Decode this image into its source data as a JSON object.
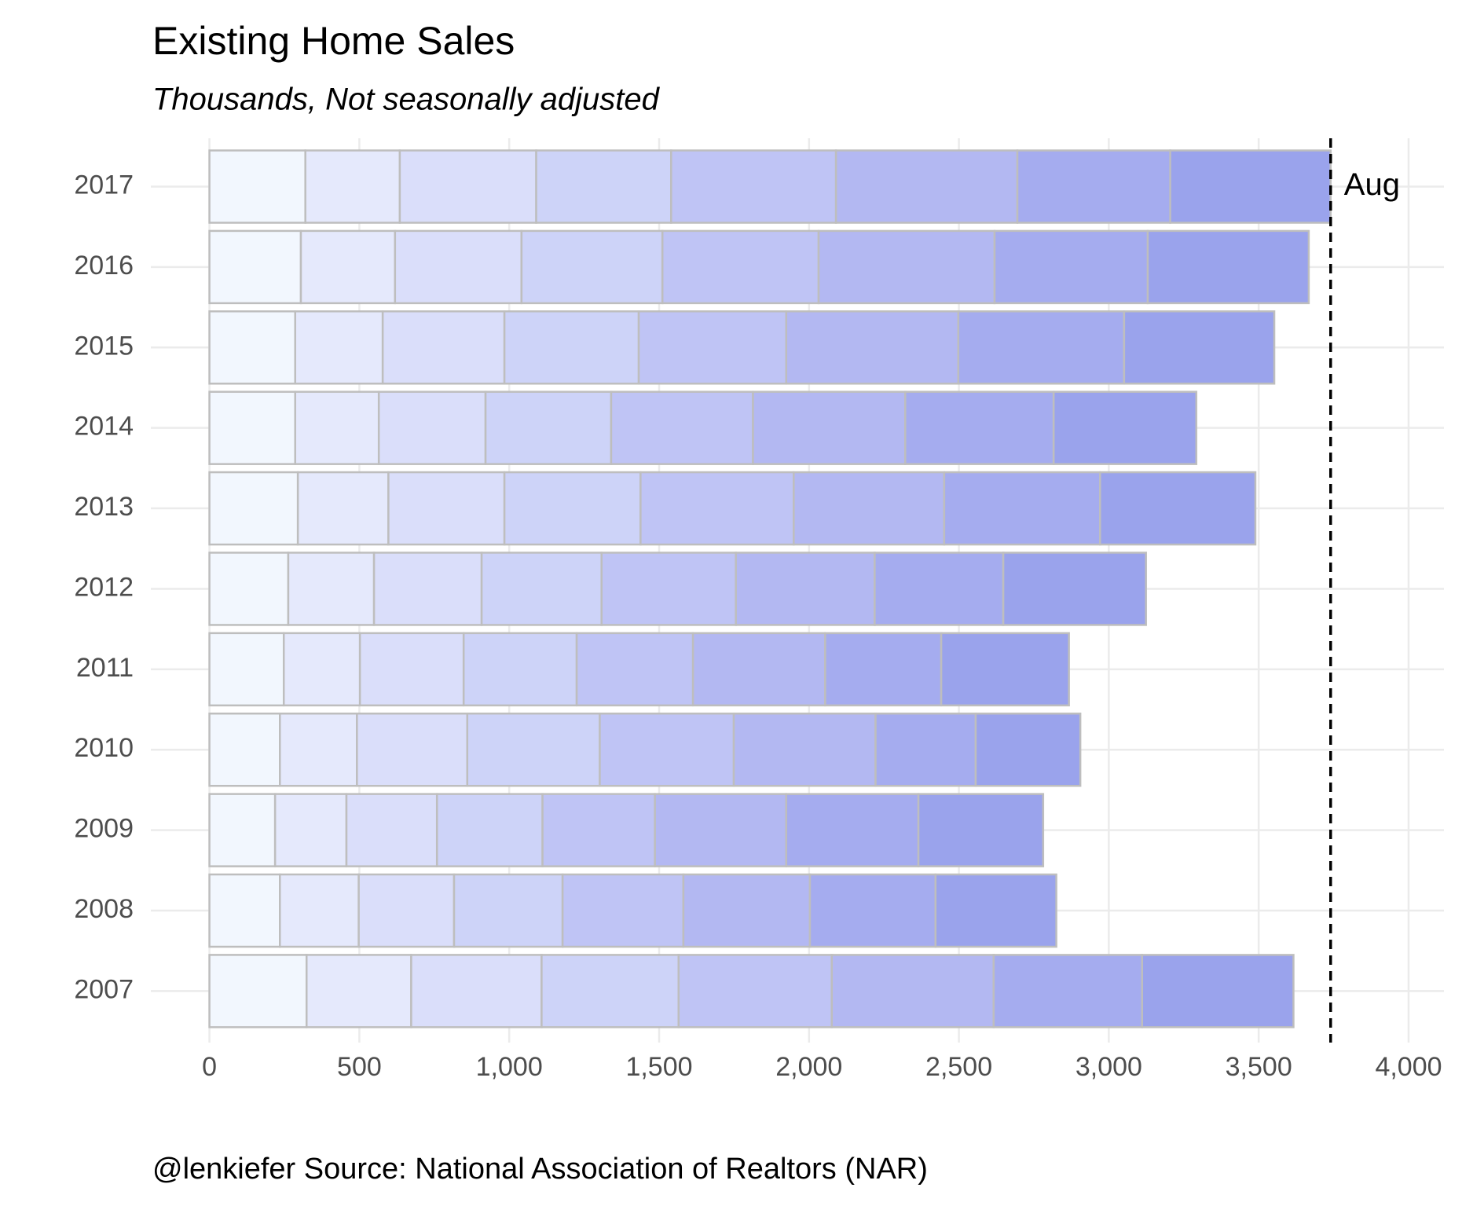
{
  "chart_data": {
    "type": "stacked_barh",
    "title": "Existing Home Sales",
    "subtitle": "Thousands, Not seasonally adjusted",
    "caption": "@lenkiefer Source: National Association of Realtors (NAR)",
    "categories": [
      "2007",
      "2008",
      "2009",
      "2010",
      "2011",
      "2012",
      "2013",
      "2014",
      "2015",
      "2016",
      "2017"
    ],
    "series": [
      {
        "color": "#f2f7fe",
        "values": [
          324,
          235,
          219,
          235,
          248,
          263,
          295,
          286,
          286,
          305,
          320
        ]
      },
      {
        "color": "#e5e9fc",
        "values": [
          349,
          263,
          238,
          257,
          254,
          286,
          302,
          279,
          292,
          314,
          315
        ]
      },
      {
        "color": "#dadefa",
        "values": [
          435,
          318,
          302,
          368,
          346,
          359,
          387,
          356,
          406,
          422,
          455
        ]
      },
      {
        "color": "#cdd3f8",
        "values": [
          457,
          362,
          352,
          442,
          377,
          400,
          454,
          419,
          448,
          470,
          450
        ]
      },
      {
        "color": "#bfc4f5",
        "values": [
          511,
          403,
          375,
          447,
          388,
          448,
          511,
          473,
          492,
          521,
          550
        ]
      },
      {
        "color": "#b3b8f2",
        "values": [
          540,
          422,
          438,
          473,
          441,
          463,
          502,
          508,
          574,
          587,
          605
        ]
      },
      {
        "color": "#a5acef",
        "values": [
          495,
          419,
          441,
          334,
          387,
          429,
          520,
          495,
          553,
          511,
          510
        ]
      },
      {
        "color": "#9aa3ec",
        "values": [
          505,
          403,
          416,
          349,
          426,
          476,
          518,
          476,
          501,
          537,
          535
        ]
      }
    ],
    "xlim": [
      0,
      4000
    ],
    "xticks": [
      0,
      500,
      {
        "value": 1000,
        "label": "1,000"
      },
      {
        "value": 1500,
        "label": "1,500"
      },
      {
        "value": 2000,
        "label": "2,000"
      },
      {
        "value": 2500,
        "label": "2,500"
      },
      {
        "value": 3000,
        "label": "3,000"
      },
      {
        "value": 3500,
        "label": "3,500"
      },
      {
        "value": 4000,
        "label": "4,000"
      }
    ],
    "grid": true,
    "annotation": {
      "text": "Aug",
      "x": 3740
    }
  }
}
